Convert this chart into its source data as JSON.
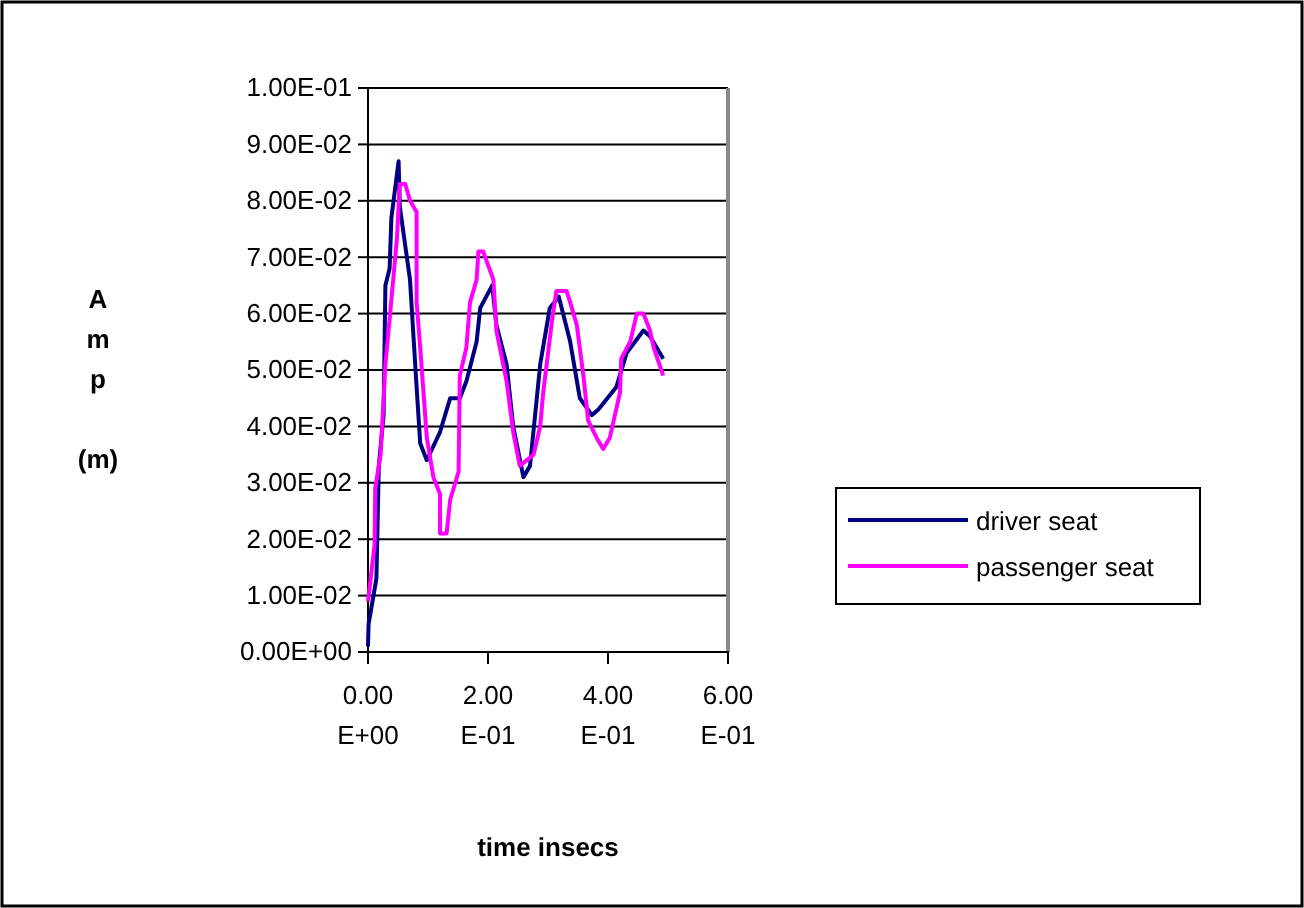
{
  "chart_data": {
    "type": "line",
    "xlabel": "time insecs",
    "ylabel": "Amp (m)",
    "xlim": [
      0,
      0.6
    ],
    "xticks": [
      {
        "value": 0,
        "label": "0.00E+00"
      },
      {
        "value": 0.2,
        "label": "2.00E-01"
      },
      {
        "value": 0.4,
        "label": "4.00E-01"
      },
      {
        "value": 0.6,
        "label": "6.00E-01"
      }
    ],
    "ylim": [
      0,
      0.1
    ],
    "yticks": [
      {
        "value": 0,
        "label": "0.00E+00"
      },
      {
        "value": 0.01,
        "label": "1.00E-02"
      },
      {
        "value": 0.02,
        "label": "2.00E-02"
      },
      {
        "value": 0.03,
        "label": "3.00E-02"
      },
      {
        "value": 0.04,
        "label": "4.00E-02"
      },
      {
        "value": 0.05,
        "label": "5.00E-02"
      },
      {
        "value": 0.06,
        "label": "6.00E-02"
      },
      {
        "value": 0.07,
        "label": "7.00E-02"
      },
      {
        "value": 0.08,
        "label": "8.00E-02"
      },
      {
        "value": 0.09,
        "label": "9.00E-02"
      },
      {
        "value": 0.1,
        "label": "1.00E-01"
      }
    ],
    "grid": "y",
    "legend": "right",
    "marker": "none",
    "line_style": "solid",
    "series": [
      {
        "name": "driver seat",
        "color": "#000080",
        "x": [
          0,
          0.001,
          0.014,
          0.018,
          0.026,
          0.029,
          0.036,
          0.039,
          0.051,
          0.053,
          0.07,
          0.081,
          0.087,
          0.098,
          0.12,
          0.137,
          0.153,
          0.164,
          0.181,
          0.187,
          0.207,
          0.214,
          0.231,
          0.242,
          0.259,
          0.27,
          0.287,
          0.303,
          0.318,
          0.337,
          0.353,
          0.373,
          0.384,
          0.414,
          0.431,
          0.459,
          0.47,
          0.492
        ],
        "values": [
          0.001,
          0.005,
          0.013,
          0.033,
          0.042,
          0.065,
          0.068,
          0.077,
          0.087,
          0.079,
          0.066,
          0.047,
          0.037,
          0.034,
          0.039,
          0.045,
          0.045,
          0.048,
          0.055,
          0.061,
          0.065,
          0.058,
          0.051,
          0.04,
          0.031,
          0.033,
          0.051,
          0.061,
          0.063,
          0.055,
          0.045,
          0.042,
          0.043,
          0.047,
          0.053,
          0.057,
          0.056,
          0.052
        ]
      },
      {
        "name": "passenger seat",
        "color": "#ff00ff",
        "x": [
          0,
          0.011,
          0.012,
          0.021,
          0.029,
          0.036,
          0.048,
          0.053,
          0.062,
          0.07,
          0.081,
          0.081,
          0.087,
          0.098,
          0.109,
          0.12,
          0.12,
          0.131,
          0.137,
          0.151,
          0.153,
          0.164,
          0.17,
          0.181,
          0.184,
          0.192,
          0.209,
          0.214,
          0.231,
          0.242,
          0.253,
          0.276,
          0.287,
          0.292,
          0.307,
          0.314,
          0.331,
          0.337,
          0.348,
          0.359,
          0.367,
          0.381,
          0.392,
          0.403,
          0.42,
          0.422,
          0.437,
          0.448,
          0.459,
          0.47,
          0.476,
          0.492
        ],
        "values": [
          0.009,
          0.019,
          0.029,
          0.035,
          0.051,
          0.059,
          0.073,
          0.083,
          0.083,
          0.08,
          0.078,
          0.062,
          0.054,
          0.038,
          0.031,
          0.028,
          0.021,
          0.021,
          0.027,
          0.032,
          0.049,
          0.054,
          0.062,
          0.066,
          0.071,
          0.071,
          0.066,
          0.057,
          0.048,
          0.039,
          0.033,
          0.035,
          0.04,
          0.046,
          0.059,
          0.064,
          0.064,
          0.062,
          0.058,
          0.049,
          0.041,
          0.038,
          0.036,
          0.038,
          0.046,
          0.052,
          0.055,
          0.06,
          0.06,
          0.057,
          0.054,
          0.049
        ]
      }
    ]
  }
}
